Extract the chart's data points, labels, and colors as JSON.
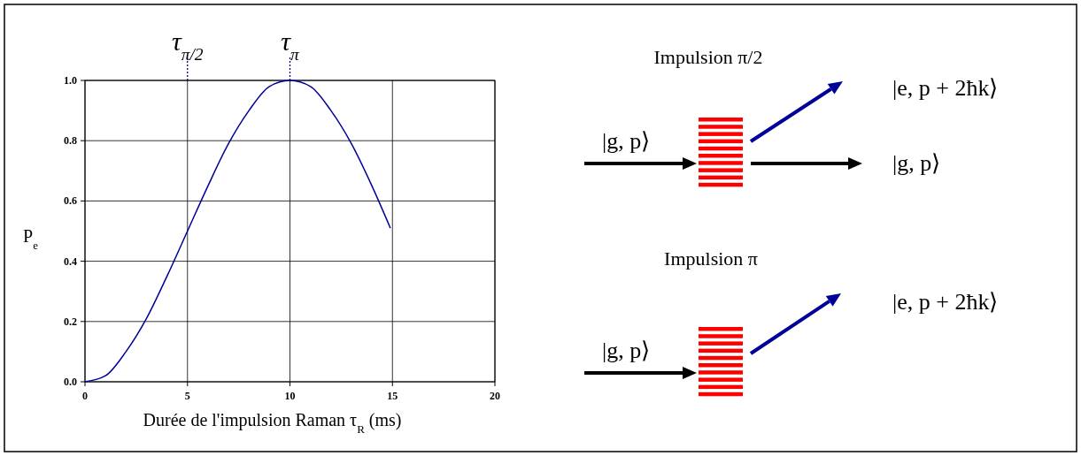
{
  "chart_data": [
    {
      "type": "line",
      "xlabel": "Durée de l'impulsion Raman τ$_{R}$ (ms)",
      "ylabel": "P$_{e}$",
      "x": [
        0,
        1,
        2,
        3,
        4,
        5,
        6,
        7,
        8,
        9,
        10,
        11,
        12,
        13,
        14,
        14.9
      ],
      "series": [
        {
          "color": "#000099",
          "values": [
            0,
            0.02,
            0.1,
            0.21,
            0.35,
            0.5,
            0.65,
            0.79,
            0.9,
            0.98,
            1,
            0.98,
            0.9,
            0.79,
            0.65,
            0.51
          ]
        }
      ],
      "xlim": [
        0,
        20
      ],
      "ylim": [
        0,
        1
      ],
      "xticks": [
        0,
        5,
        10,
        15,
        20
      ],
      "yticks": [
        {
          "value": 0,
          "label": "0.0"
        },
        {
          "value": 0.2,
          "label": "0.2"
        },
        {
          "value": 0.4,
          "label": "0.4"
        },
        {
          "value": 0.6,
          "label": "0.6"
        },
        {
          "value": 0.8,
          "label": "0.8"
        },
        {
          "value": 1,
          "label": "1.0"
        }
      ],
      "grid": true,
      "ref_lines": [
        {
          "axis": "x",
          "value": 5,
          "label": "τ$_{π/2}$",
          "color": "#000099",
          "line_style": "dotted"
        },
        {
          "axis": "x",
          "value": 10,
          "label": "τ$_{π}$",
          "color": "#000099",
          "line_style": "dotted"
        }
      ]
    },
    {
      "type": "other",
      "annotations": [
        "Impulsion π/2",
        "|e, p + 2ħk⟩",
        "|g, p⟩",
        "|g, p⟩",
        "Impulsion π",
        "|g, p⟩",
        "|e, p + 2ħk⟩"
      ]
    }
  ]
}
